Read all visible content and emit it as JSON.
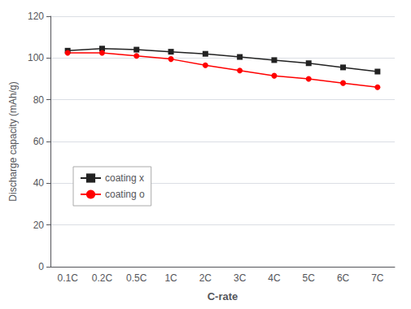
{
  "chart_data": {
    "type": "line",
    "xlabel": "C-rate",
    "ylabel": "Discharge capacity (mAh/g)",
    "categories": [
      "0.1C",
      "0.2C",
      "0.5C",
      "1C",
      "2C",
      "3C",
      "4C",
      "5C",
      "6C",
      "7C"
    ],
    "series": [
      {
        "name": "coating x",
        "color": "#222222",
        "marker": "square",
        "values": [
          103.5,
          104.5,
          104.0,
          103.0,
          102.0,
          100.5,
          99.0,
          97.5,
          95.5,
          93.5
        ]
      },
      {
        "name": "coating o",
        "color": "#ff0000",
        "marker": "circle",
        "values": [
          102.5,
          102.5,
          101.0,
          99.5,
          96.5,
          94.0,
          91.5,
          90.0,
          88.0,
          86.0
        ]
      }
    ],
    "ylim": [
      0,
      120
    ],
    "yticks": [
      0,
      20,
      40,
      60,
      80,
      100,
      120
    ],
    "grid": true,
    "legend": "left"
  }
}
